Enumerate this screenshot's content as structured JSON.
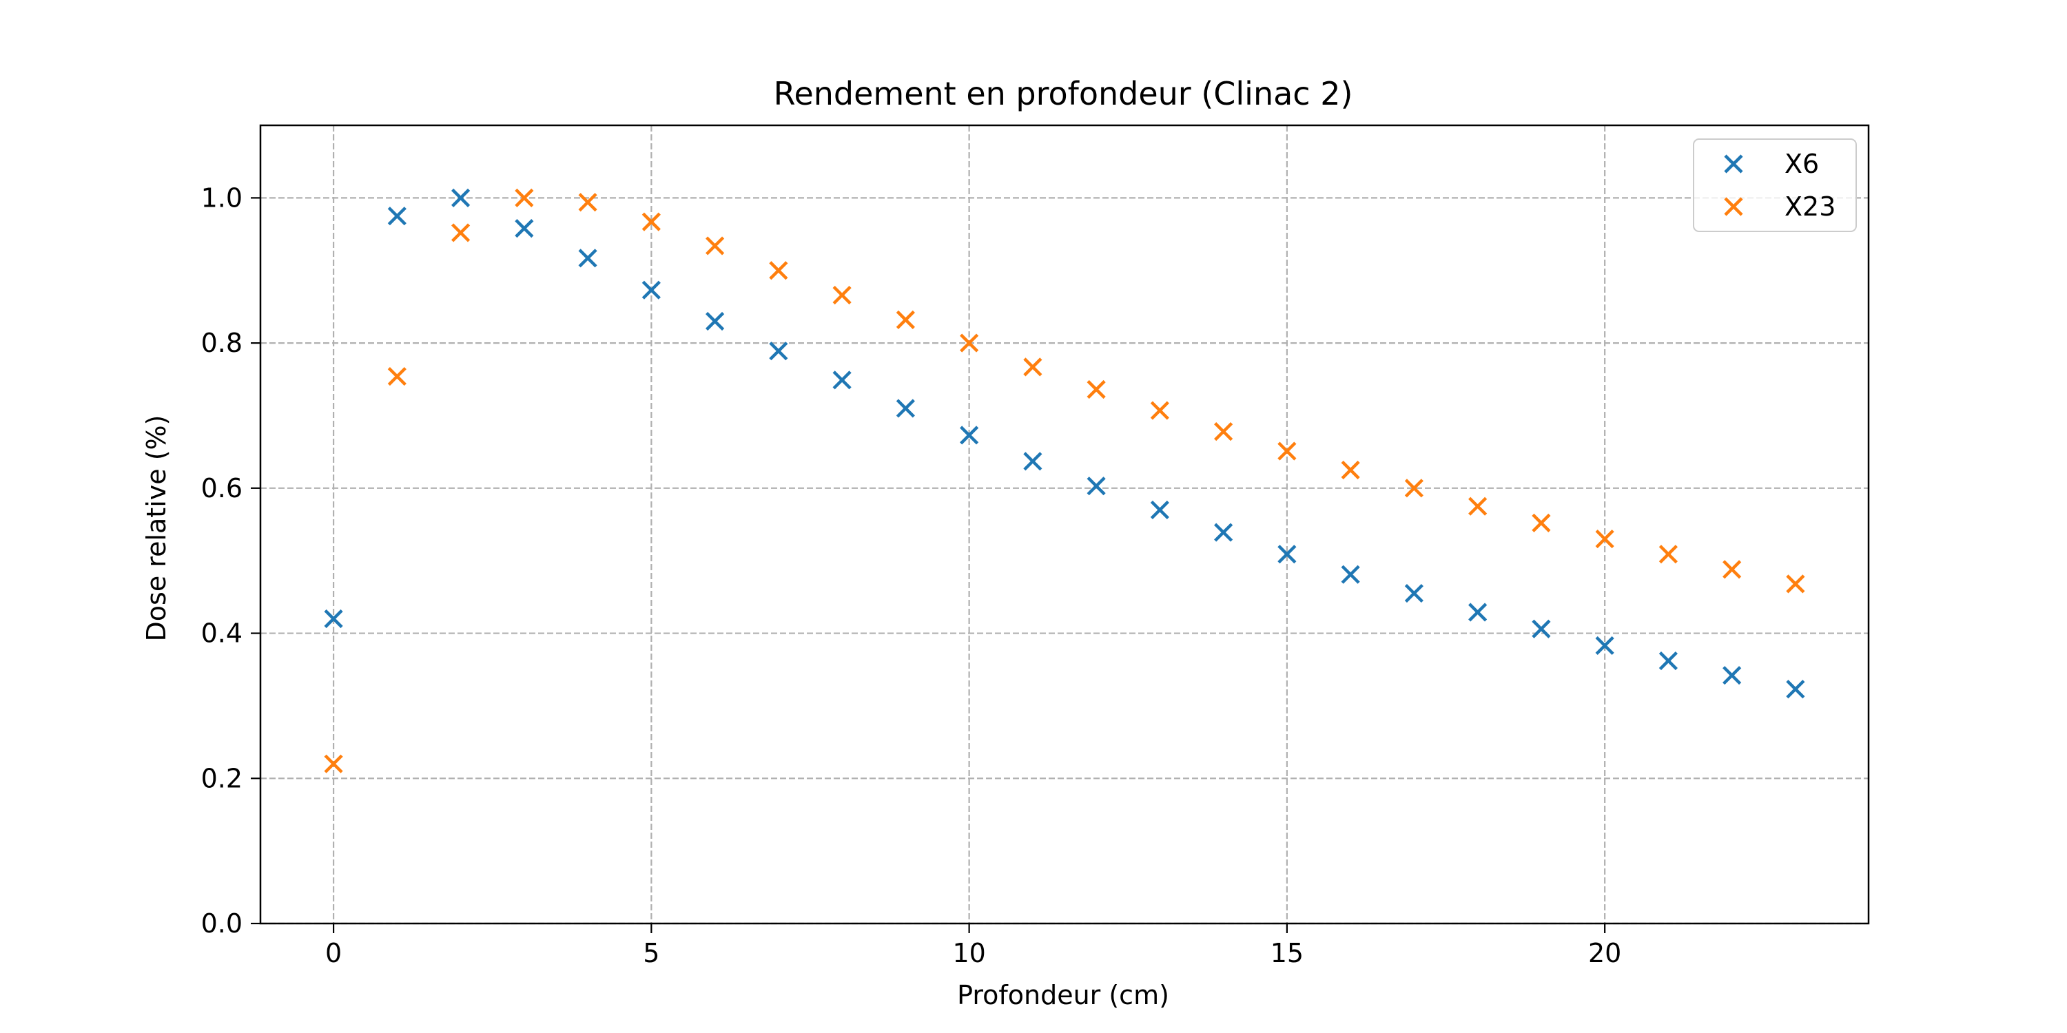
{
  "chart_data": {
    "type": "scatter",
    "title": "Rendement en profondeur (Clinac 2)",
    "xlabel": "Profondeur (cm)",
    "ylabel": "Dose relative (%)",
    "xlim": [
      -1.15,
      24.15
    ],
    "ylim": [
      0,
      1.1
    ],
    "x_ticks": [
      0,
      5,
      10,
      15,
      20
    ],
    "x_tick_labels": [
      "0",
      "5",
      "10",
      "15",
      "20"
    ],
    "y_ticks": [
      0.0,
      0.2,
      0.4,
      0.6,
      0.8,
      1.0
    ],
    "y_tick_labels": [
      "0.0",
      "0.2",
      "0.4",
      "0.6",
      "0.8",
      "1.0"
    ],
    "grid": true,
    "marker": "x",
    "legend_position": "top-right",
    "x": [
      0,
      1,
      2,
      3,
      4,
      5,
      6,
      7,
      8,
      9,
      10,
      11,
      12,
      13,
      14,
      15,
      16,
      17,
      18,
      19,
      20,
      21,
      22,
      23
    ],
    "series": [
      {
        "name": "X6",
        "color": "#1f77b4",
        "values": [
          0.42,
          0.975,
          1.0,
          0.958,
          0.917,
          0.873,
          0.83,
          0.789,
          0.749,
          0.71,
          0.673,
          0.637,
          0.603,
          0.57,
          0.539,
          0.509,
          0.481,
          0.455,
          0.429,
          0.406,
          0.383,
          0.362,
          0.342,
          0.323
        ]
      },
      {
        "name": "X23",
        "color": "#ff7f0e",
        "values": [
          0.22,
          0.754,
          0.952,
          1.0,
          0.994,
          0.967,
          0.934,
          0.9,
          0.866,
          0.832,
          0.8,
          0.767,
          0.736,
          0.707,
          0.678,
          0.651,
          0.625,
          0.6,
          0.575,
          0.552,
          0.53,
          0.509,
          0.488,
          0.468
        ]
      }
    ]
  }
}
